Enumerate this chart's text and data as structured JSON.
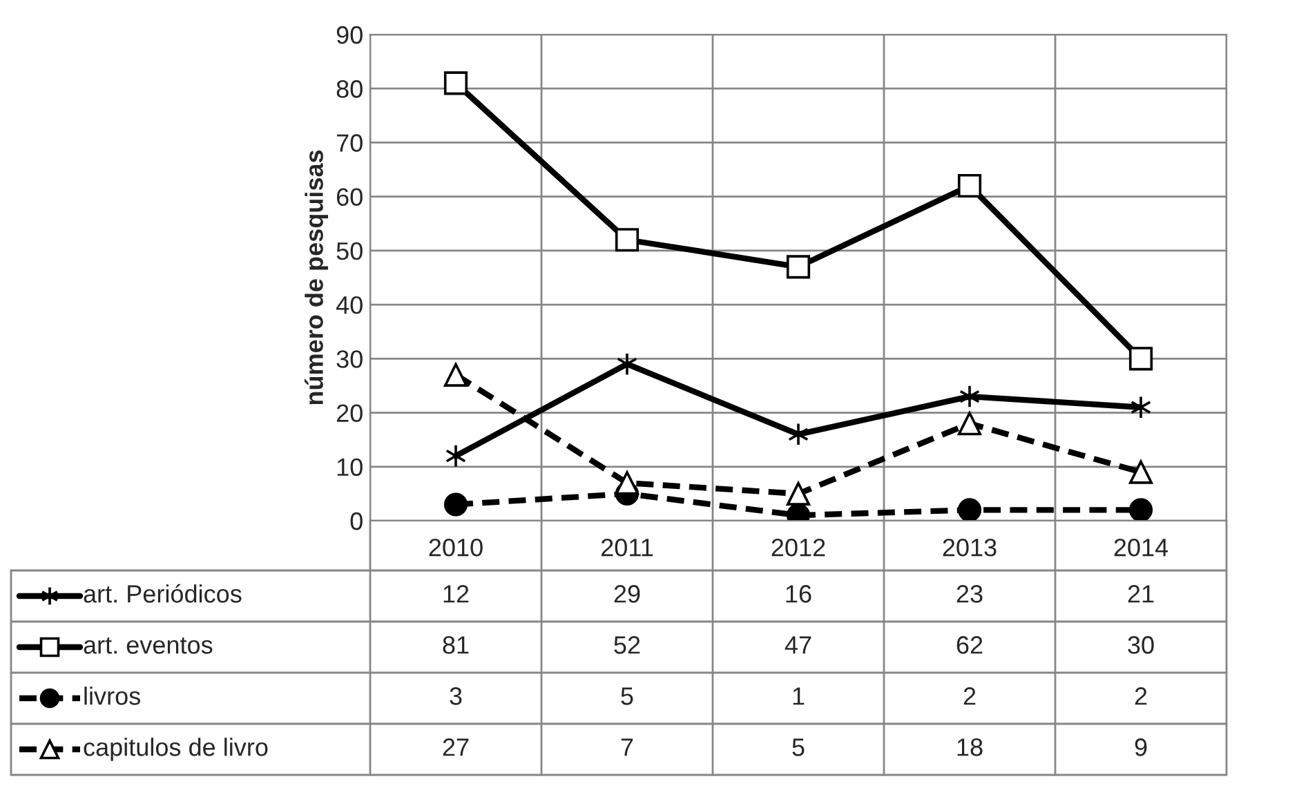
{
  "chart_data": {
    "type": "line",
    "ylabel": "número de pesquisas",
    "categories": [
      "2010",
      "2011",
      "2012",
      "2013",
      "2014"
    ],
    "series": [
      {
        "name": "art. Periódicos",
        "color": "#000000",
        "marker": "cross",
        "line_style": "solid",
        "values": [
          12,
          29,
          16,
          23,
          21
        ]
      },
      {
        "name": "art. eventos",
        "color": "#000000",
        "marker": "square",
        "line_style": "solid",
        "values": [
          81,
          52,
          47,
          62,
          30
        ]
      },
      {
        "name": "livros",
        "color": "#000000",
        "marker": "circle",
        "line_style": "dashed",
        "values": [
          3,
          5,
          1,
          2,
          2
        ]
      },
      {
        "name": "capitulos de livro",
        "color": "#000000",
        "marker": "triangle",
        "line_style": "dashed",
        "values": [
          27,
          7,
          5,
          18,
          9
        ]
      }
    ],
    "ylim": [
      0,
      90
    ],
    "yticks": [
      0,
      10,
      20,
      30,
      40,
      50,
      60,
      70,
      80,
      90
    ],
    "grid": true,
    "legend": "bottom",
    "data_labels": true
  }
}
